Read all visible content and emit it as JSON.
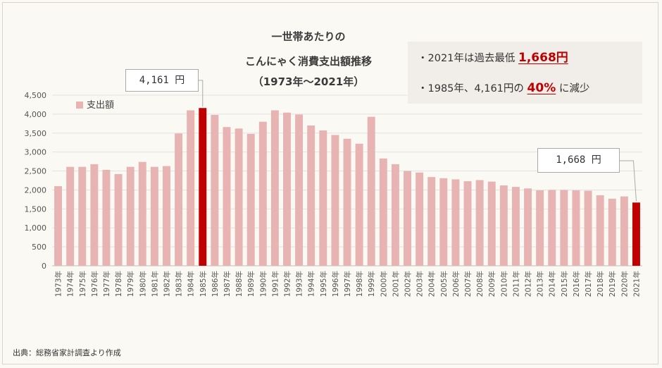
{
  "chart_data": {
    "type": "bar",
    "title_lines": [
      "一世帯あたりの",
      "こんにゃく消費支出額推移",
      "（1973年～2021年）"
    ],
    "legend": "支出額",
    "legend_position": "top-left",
    "grid": true,
    "ylim": [
      0,
      4500
    ],
    "yticks": [
      "0",
      "500",
      "1,000",
      "1,500",
      "2,000",
      "2,500",
      "3,000",
      "3,500",
      "4,000",
      "4,500"
    ],
    "categories": [
      "1973年",
      "1974年",
      "1975年",
      "1976年",
      "1977年",
      "1978年",
      "1979年",
      "1980年",
      "1981年",
      "1982年",
      "1983年",
      "1984年",
      "1985年",
      "1986年",
      "1987年",
      "1988年",
      "1989年",
      "1990年",
      "1991年",
      "1992年",
      "1993年",
      "1994年",
      "1995年",
      "1996年",
      "1997年",
      "1998年",
      "1999年",
      "2000年",
      "2001年",
      "2002年",
      "2003年",
      "2004年",
      "2005年",
      "2006年",
      "2007年",
      "2008年",
      "2009年",
      "2010年",
      "2011年",
      "2012年",
      "2013年",
      "2014年",
      "2015年",
      "2016年",
      "2017年",
      "2018年",
      "2019年",
      "2020年",
      "2021年"
    ],
    "values": [
      2100,
      2610,
      2610,
      2680,
      2530,
      2420,
      2610,
      2740,
      2610,
      2630,
      3490,
      4100,
      4161,
      3980,
      3660,
      3620,
      3480,
      3800,
      4100,
      4040,
      3990,
      3700,
      3570,
      3450,
      3350,
      3220,
      3930,
      2830,
      2680,
      2500,
      2460,
      2340,
      2310,
      2280,
      2230,
      2260,
      2220,
      2120,
      2080,
      2040,
      1990,
      2000,
      2000,
      1990,
      1980,
      1860,
      1770,
      1830,
      1668
    ],
    "highlight_categories": [
      "1985年",
      "2021年"
    ],
    "colors": {
      "bar": "#e8b3b3",
      "highlight": "#c00000"
    },
    "annotations": [
      {
        "target": "1985年",
        "text": "4,161 円"
      },
      {
        "target": "2021年",
        "text": "1,668 円"
      }
    ]
  },
  "info_box": {
    "line1_prefix": "・2021年は過去最低 ",
    "line1_value": "1,668円",
    "line2_prefix": "・1985年、4,161円の ",
    "line2_value": "40%",
    "line2_suffix": " に減少"
  },
  "source_note": "出典：総務省家計調査より作成"
}
